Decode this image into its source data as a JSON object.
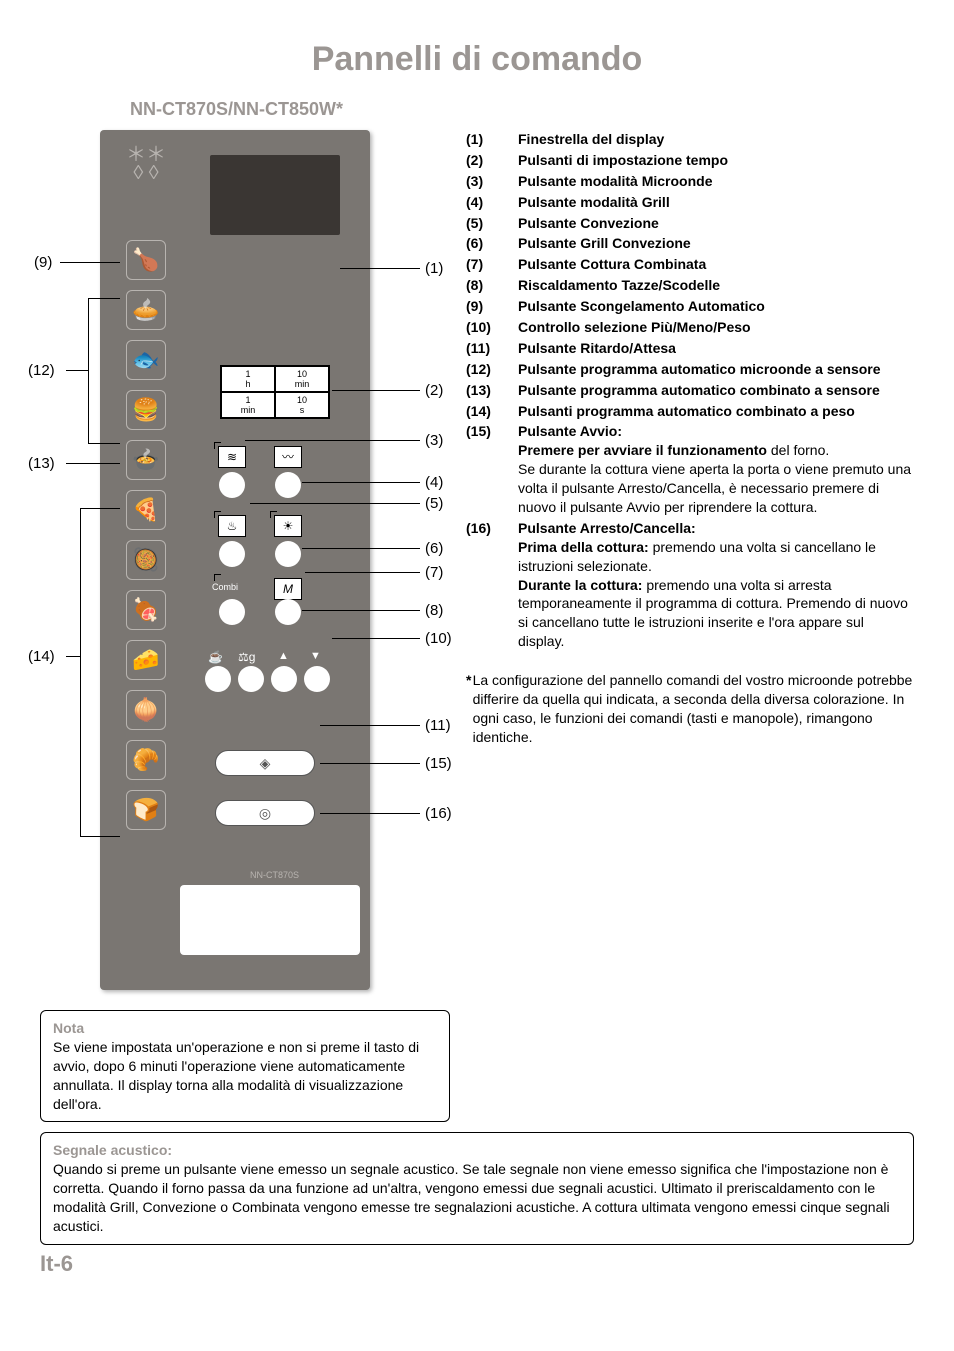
{
  "title": "Pannelli di comando",
  "model": "NN-CT870S/NN-CT850W*",
  "panel_model_label": "NN-CT870S",
  "time_grid": {
    "r1c1_top": "1",
    "r1c1_bot": "h",
    "r1c2_top": "10",
    "r1c2_bot": "min",
    "r2c1_top": "1",
    "r2c1_bot": "min",
    "r2c2_top": "10",
    "r2c2_bot": "s"
  },
  "combi_label": "Combi",
  "m_label": "M",
  "weight_icons": {
    "cup": "☕",
    "weight": "⚖g",
    "up": "▲",
    "down": "▼"
  },
  "pill_delay": "◈",
  "pill_stop": "◎",
  "callouts": {
    "c1": "(1)",
    "c2": "(2)",
    "c3": "(3)",
    "c4": "(4)",
    "c5": "(5)",
    "c6": "(6)",
    "c7": "(7)",
    "c8": "(8)",
    "c9": "(9)",
    "c10": "(10)",
    "c11": "(11)",
    "c12": "(12)",
    "c13": "(13)",
    "c14": "(14)",
    "c15": "(15)",
    "c16": "(16)"
  },
  "legend": [
    {
      "n": "(1)",
      "t": "<b>Finestrella del display</b>"
    },
    {
      "n": "(2)",
      "t": "<b>Pulsanti di impostazione tempo</b>"
    },
    {
      "n": "(3)",
      "t": "<b>Pulsante modalità Microonde</b>"
    },
    {
      "n": "(4)",
      "t": "<b>Pulsante modalità Grill</b>"
    },
    {
      "n": "(5)",
      "t": "<b>Pulsante Convezione</b>"
    },
    {
      "n": "(6)",
      "t": "<b>Pulsante Grill Convezione</b>"
    },
    {
      "n": "(7)",
      "t": "<b>Pulsante Cottura Combinata</b>"
    },
    {
      "n": "(8)",
      "t": "<b>Riscaldamento Tazze/Scodelle</b>"
    },
    {
      "n": "(9)",
      "t": "<b>Pulsante Scongelamento Automatico</b>"
    },
    {
      "n": "(10)",
      "t": "<b>Controllo selezione Più/Meno/Peso</b>"
    },
    {
      "n": "(11)",
      "t": "<b>Pulsante Ritardo/Attesa</b>"
    },
    {
      "n": "(12)",
      "t": "<b>Pulsante programma automatico microonde a sensore</b>"
    },
    {
      "n": "(13)",
      "t": "<b>Pulsante programma automatico combinato a sensore</b>"
    },
    {
      "n": "(14)",
      "t": "<b>Pulsanti programma automatico combinato a peso</b>"
    },
    {
      "n": "(15)",
      "t": "<b>Pulsante Avvio:</b><br><b>Premere per avviare il funzionamento</b> del forno.<br>Se durante la cottura viene aperta la porta o viene premuto una volta il pulsante Arresto/Cancella, è necessario premere di nuovo il pulsante Avvio per riprendere la cottura."
    },
    {
      "n": "(16)",
      "t": "<b>Pulsante Arresto/Cancella:</b><br><b>Prima della cottura:</b> premendo una volta si cancellano le istruzioni selezionate.<br><b>Durante la cottura:</b> premendo una volta si arresta temporaneamente il programma di cottura. Premendo di nuovo si cancellano tutte le istruzioni inserite e l'ora appare sul display."
    }
  ],
  "star_note": "La configurazione del pannello comandi del vostro microonde potrebbe differire da quella qui indicata, a seconda della diversa colorazione. In ogni caso, le funzioni dei comandi (tasti e manopole), rimangono identiche.",
  "nota_title": "Nota",
  "nota_text": "Se viene impostata un'operazione e non si preme il tasto di avvio, dopo 6 minuti l'operazione viene automaticamente annullata. Il display torna alla modalità di visualizzazione dell'ora.",
  "beep_title": "Segnale acustico:",
  "beep_text": "Quando si preme un pulsante viene emesso un segnale acustico. Se tale segnale non viene emesso significa che l'impostazione non è corretta. Quando il forno passa da una funzione ad un'altra, vengono emessi due segnali acustici. Ultimato il preriscaldamento con le modalità Grill, Convezione o Combinata vengono emesse tre segnalazioni acustiche. A cottura ultimata vengono emessi cinque segnali acustici.",
  "page": "It-6",
  "colors": {
    "panel": "#7a7672",
    "title": "#9b9693",
    "display": "#3a3633"
  }
}
